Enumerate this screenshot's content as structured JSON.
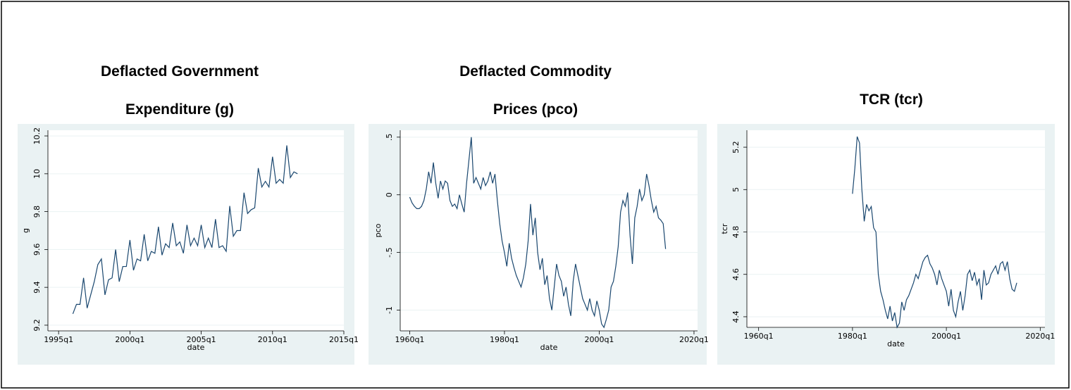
{
  "chart_data": [
    {
      "type": "line",
      "title": "Deflacted Government Expenditure (g)",
      "xlabel": "date",
      "ylabel": "g",
      "color": "#1a476f",
      "grid": true,
      "xlim": [
        "1994q2",
        "2015q1"
      ],
      "xticks": [
        "1995q1",
        "2000q1",
        "2005q1",
        "2010q1",
        "2015q1"
      ],
      "ylim": [
        9.17,
        10.23
      ],
      "yticks": [
        9.2,
        9.4,
        9.6,
        9.8,
        10,
        10.2
      ],
      "x": [
        "1996q1",
        "1996q2",
        "1996q3",
        "1996q4",
        "1997q1",
        "1997q2",
        "1997q3",
        "1997q4",
        "1998q1",
        "1998q2",
        "1998q3",
        "1998q4",
        "1999q1",
        "1999q2",
        "1999q3",
        "1999q4",
        "2000q1",
        "2000q2",
        "2000q3",
        "2000q4",
        "2001q1",
        "2001q2",
        "2001q3",
        "2001q4",
        "2002q1",
        "2002q2",
        "2002q3",
        "2002q4",
        "2003q1",
        "2003q2",
        "2003q3",
        "2003q4",
        "2004q1",
        "2004q2",
        "2004q3",
        "2004q4",
        "2005q1",
        "2005q2",
        "2005q3",
        "2005q4",
        "2006q1",
        "2006q2",
        "2006q3",
        "2006q4",
        "2007q1",
        "2007q2",
        "2007q3",
        "2007q4",
        "2008q1",
        "2008q2",
        "2008q3",
        "2008q4",
        "2009q1",
        "2009q2",
        "2009q3",
        "2009q4",
        "2010q1",
        "2010q2",
        "2010q3",
        "2010q4",
        "2011q1",
        "2011q2",
        "2011q3",
        "2011q4"
      ],
      "values": [
        9.26,
        9.31,
        9.31,
        9.45,
        9.29,
        9.36,
        9.43,
        9.52,
        9.55,
        9.36,
        9.44,
        9.45,
        9.6,
        9.43,
        9.51,
        9.51,
        9.65,
        9.49,
        9.55,
        9.54,
        9.68,
        9.54,
        9.59,
        9.58,
        9.72,
        9.57,
        9.63,
        9.61,
        9.74,
        9.62,
        9.64,
        9.58,
        9.73,
        9.62,
        9.66,
        9.62,
        9.73,
        9.61,
        9.66,
        9.61,
        9.76,
        9.61,
        9.62,
        9.59,
        9.83,
        9.67,
        9.7,
        9.7,
        9.9,
        9.79,
        9.81,
        9.82,
        10.03,
        9.93,
        9.96,
        9.93,
        10.09,
        9.95,
        9.97,
        9.95,
        10.15,
        9.98,
        10.01,
        10.0
      ]
    },
    {
      "type": "line",
      "title": "Deflacted Commodity Prices (pco)",
      "xlabel": "date",
      "ylabel": "pco",
      "color": "#1a476f",
      "grid": true,
      "xlim": [
        "1958q1",
        "2020q4"
      ],
      "xticks": [
        "1960q1",
        "1980q1",
        "2000q1",
        "2020q1"
      ],
      "ylim": [
        -1.18,
        0.56
      ],
      "yticks": [
        -1,
        {
          "value": -0.5,
          "label": "-.5"
        },
        0,
        {
          "value": 0.5,
          "label": ".5"
        }
      ],
      "x": [
        "1960q1",
        "1960q3",
        "1961q1",
        "1961q3",
        "1962q1",
        "1962q3",
        "1963q1",
        "1963q3",
        "1964q1",
        "1964q3",
        "1965q1",
        "1965q3",
        "1966q1",
        "1966q3",
        "1967q1",
        "1967q3",
        "1968q1",
        "1968q3",
        "1969q1",
        "1969q3",
        "1970q1",
        "1970q3",
        "1971q1",
        "1971q3",
        "1972q1",
        "1972q3",
        "1973q1",
        "1973q3",
        "1974q1",
        "1974q3",
        "1975q1",
        "1975q3",
        "1976q1",
        "1976q3",
        "1977q1",
        "1977q3",
        "1978q1",
        "1978q3",
        "1979q1",
        "1979q3",
        "1980q1",
        "1980q3",
        "1981q1",
        "1981q3",
        "1982q1",
        "1982q3",
        "1983q1",
        "1983q3",
        "1984q1",
        "1984q3",
        "1985q1",
        "1985q3",
        "1986q1",
        "1986q3",
        "1987q1",
        "1987q3",
        "1988q1",
        "1988q3",
        "1989q1",
        "1989q3",
        "1990q1",
        "1990q3",
        "1991q1",
        "1991q3",
        "1992q1",
        "1992q3",
        "1993q1",
        "1993q3",
        "1994q1",
        "1994q3",
        "1995q1",
        "1995q3",
        "1996q1",
        "1996q3",
        "1997q1",
        "1997q3",
        "1998q1",
        "1998q3",
        "1999q1",
        "1999q3",
        "2000q1",
        "2000q3",
        "2001q1",
        "2001q3",
        "2002q1",
        "2002q3",
        "2003q1",
        "2003q3",
        "2004q1",
        "2004q3",
        "2005q1",
        "2005q3",
        "2006q1",
        "2006q3",
        "2007q1",
        "2007q3",
        "2008q1",
        "2008q3",
        "2009q1",
        "2009q3",
        "2010q1",
        "2010q3",
        "2011q1",
        "2011q3",
        "2012q1",
        "2012q3",
        "2013q1",
        "2013q3",
        "2014q1"
      ],
      "values": [
        -0.02,
        -0.07,
        -0.1,
        -0.12,
        -0.12,
        -0.1,
        -0.05,
        0.05,
        0.2,
        0.1,
        0.28,
        0.1,
        -0.03,
        0.12,
        0.05,
        0.12,
        0.1,
        -0.05,
        -0.1,
        -0.08,
        -0.12,
        0.0,
        -0.08,
        -0.15,
        0.1,
        0.3,
        0.5,
        0.1,
        0.15,
        0.1,
        0.05,
        0.15,
        0.08,
        0.12,
        0.2,
        0.1,
        0.18,
        -0.05,
        -0.25,
        -0.4,
        -0.5,
        -0.62,
        -0.42,
        -0.55,
        -0.63,
        -0.7,
        -0.75,
        -0.8,
        -0.72,
        -0.6,
        -0.4,
        -0.08,
        -0.35,
        -0.2,
        -0.5,
        -0.65,
        -0.55,
        -0.78,
        -0.7,
        -0.9,
        -1.0,
        -0.8,
        -0.6,
        -0.7,
        -0.75,
        -0.88,
        -0.8,
        -0.95,
        -1.05,
        -0.75,
        -0.6,
        -0.7,
        -0.8,
        -0.9,
        -0.95,
        -1.0,
        -0.9,
        -1.0,
        -1.05,
        -0.92,
        -1.0,
        -1.12,
        -1.15,
        -1.08,
        -1.0,
        -0.8,
        -0.75,
        -0.62,
        -0.45,
        -0.15,
        -0.05,
        -0.1,
        0.02,
        -0.35,
        -0.6,
        -0.2,
        -0.1,
        0.05,
        -0.05,
        0.0,
        0.18,
        0.08,
        -0.05,
        -0.15,
        -0.1,
        -0.2,
        -0.22,
        -0.25,
        -0.47
      ]
    },
    {
      "type": "line",
      "title": "TCR (tcr)",
      "xlabel": "date",
      "ylabel": "tcr",
      "color": "#1a476f",
      "grid": true,
      "xlim": [
        "1957q3",
        "2021q1"
      ],
      "xticks": [
        "1960q1",
        "1980q1",
        "2000q1",
        "2020q1"
      ],
      "ylim": [
        4.35,
        5.28
      ],
      "yticks": [
        4.4,
        4.6,
        4.8,
        5,
        5.2
      ],
      "x": [
        "1980q1",
        "1980q3",
        "1981q1",
        "1981q3",
        "1982q1",
        "1982q3",
        "1983q1",
        "1983q3",
        "1984q1",
        "1984q3",
        "1985q1",
        "1985q3",
        "1986q1",
        "1986q3",
        "1987q1",
        "1987q3",
        "1988q1",
        "1988q3",
        "1989q1",
        "1989q3",
        "1990q1",
        "1990q3",
        "1991q1",
        "1991q3",
        "1992q1",
        "1992q3",
        "1993q1",
        "1993q3",
        "1994q1",
        "1994q3",
        "1995q1",
        "1995q3",
        "1996q1",
        "1996q3",
        "1997q1",
        "1997q3",
        "1998q1",
        "1998q3",
        "1999q1",
        "1999q3",
        "2000q1",
        "2000q3",
        "2001q1",
        "2001q3",
        "2002q1",
        "2002q3",
        "2003q1",
        "2003q3",
        "2004q1",
        "2004q3",
        "2005q1",
        "2005q3",
        "2006q1",
        "2006q3",
        "2007q1",
        "2007q3",
        "2008q1",
        "2008q3",
        "2009q1",
        "2009q3",
        "2010q1",
        "2010q3",
        "2011q1",
        "2011q3",
        "2012q1",
        "2012q3",
        "2013q1",
        "2013q3",
        "2014q1",
        "2014q3",
        "2015q1"
      ],
      "values": [
        4.98,
        5.1,
        5.25,
        5.22,
        5.0,
        4.85,
        4.93,
        4.9,
        4.92,
        4.82,
        4.8,
        4.6,
        4.52,
        4.48,
        4.43,
        4.39,
        4.45,
        4.38,
        4.42,
        4.35,
        4.37,
        4.47,
        4.43,
        4.48,
        4.5,
        4.53,
        4.56,
        4.6,
        4.58,
        4.62,
        4.66,
        4.68,
        4.69,
        4.65,
        4.63,
        4.6,
        4.55,
        4.62,
        4.58,
        4.55,
        4.52,
        4.45,
        4.53,
        4.43,
        4.4,
        4.47,
        4.52,
        4.43,
        4.5,
        4.6,
        4.62,
        4.57,
        4.61,
        4.55,
        4.58,
        4.48,
        4.62,
        4.55,
        4.56,
        4.6,
        4.62,
        4.64,
        4.6,
        4.65,
        4.66,
        4.62,
        4.66,
        4.58,
        4.53,
        4.52,
        4.56
      ]
    }
  ]
}
